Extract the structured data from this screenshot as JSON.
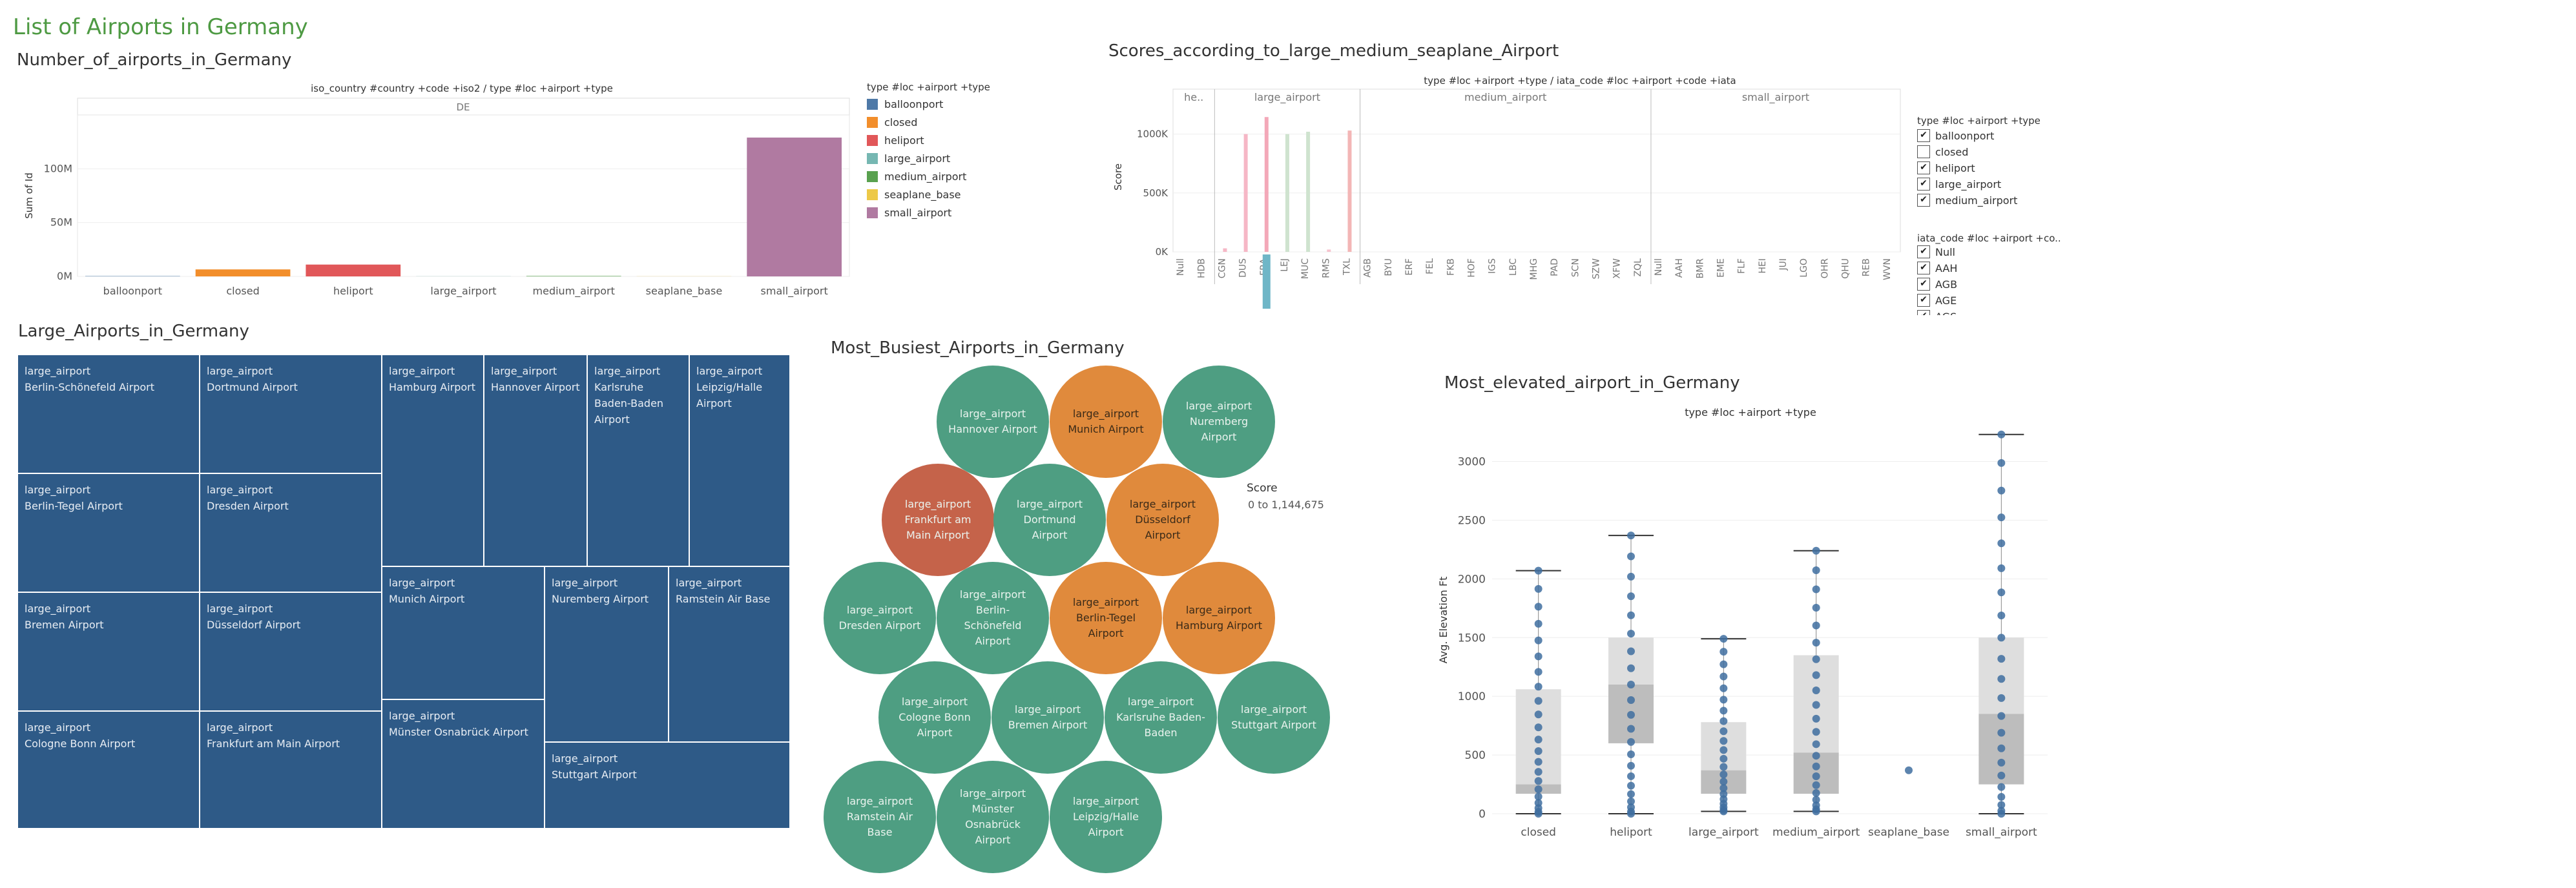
{
  "dashboard": {
    "title": "List of Airports in Germany"
  },
  "colors": {
    "balloonport": "#4e79a7",
    "closed": "#f28e2b",
    "heliport": "#e15759",
    "large_airport": "#76b7b2",
    "medium_airport": "#59a14f",
    "seaplane_base": "#edc948",
    "small_airport": "#b07aa1",
    "treemap": "#2e5a87",
    "bubble_green": "#4e9e82",
    "bubble_orange": "#e08a3c",
    "bubble_red": "#c5634a",
    "box_points": "#3f6fa0"
  },
  "number_chart": {
    "sheet_title": "Number_of_airports_in_Germany",
    "header": "iso_country #country +code +iso2  /  type #loc +airport +type",
    "country": "DE",
    "ylabel": "Sum of Id",
    "y_ticks": [
      "100M",
      "50M",
      "0M"
    ],
    "legend": {
      "title": "type #loc +airport +type",
      "items": [
        {
          "label": "balloonport",
          "color": "#4e79a7"
        },
        {
          "label": "closed",
          "color": "#f28e2b"
        },
        {
          "label": "heliport",
          "color": "#e15759"
        },
        {
          "label": "large_airport",
          "color": "#76b7b2"
        },
        {
          "label": "medium_airport",
          "color": "#59a14f"
        },
        {
          "label": "seaplane_base",
          "color": "#edc948"
        },
        {
          "label": "small_airport",
          "color": "#b07aa1"
        }
      ]
    }
  },
  "chart_data": [
    {
      "type": "bar",
      "title": "Number_of_airports_in_Germany",
      "xlabel": "",
      "ylabel": "Sum of Id",
      "categories": [
        "balloonport",
        "closed",
        "heliport",
        "large_airport",
        "medium_airport",
        "seaplane_base",
        "small_airport"
      ],
      "values": [
        0.3,
        6.5,
        11,
        0.1,
        0.4,
        0.1,
        129
      ],
      "unit": "M",
      "ylim": [
        0,
        150
      ],
      "grid": true,
      "legend": "right"
    },
    {
      "type": "bar",
      "title": "Scores_according_to_large_medium_seaplane_Airport",
      "ylabel": "Score",
      "ylim": [
        0,
        1250000
      ],
      "groups": [
        {
          "name": "he..",
          "categories": [
            "Null",
            "HDB"
          ],
          "values": [
            0,
            0
          ]
        },
        {
          "name": "large_airport",
          "categories": [
            "CGN",
            "DUS",
            "FRA",
            "LEJ",
            "MUC",
            "RMS",
            "TXL"
          ],
          "values": [
            30000,
            1000000,
            1144675,
            1000000,
            1020000,
            20000,
            1030000
          ]
        },
        {
          "name": "medium_airport",
          "categories": [
            "AGB",
            "BYU",
            "ERF",
            "FEL",
            "FKB",
            "HOF",
            "IGS",
            "LBC",
            "MHG",
            "PAD",
            "SCN",
            "SZW",
            "XFW",
            "ZQL"
          ],
          "values": [
            0,
            0,
            0,
            0,
            0,
            0,
            0,
            0,
            0,
            0,
            0,
            0,
            0,
            0
          ]
        },
        {
          "name": "small_airport",
          "categories": [
            "Null",
            "AAH",
            "BMR",
            "EME",
            "FLF",
            "HEI",
            "JUI",
            "LGO",
            "OHR",
            "QHU",
            "REB",
            "WVN"
          ],
          "values": [
            0,
            0,
            0,
            0,
            0,
            0,
            0,
            0,
            0,
            0,
            0,
            0
          ]
        }
      ],
      "y_ticks": [
        "1000K",
        "500K",
        "0K"
      ],
      "legend": "right"
    },
    {
      "type": "treemap",
      "title": "Large_Airports_in_Germany",
      "categories": [
        "Berlin-Schönefeld Airport",
        "Dortmund Airport",
        "Hamburg Airport",
        "Hannover Airport",
        "Karlsruhe Baden-Baden Airport",
        "Leipzig/Halle Airport",
        "Berlin-Tegel Airport",
        "Dresden Airport",
        "Munich Airport",
        "Nuremberg Airport",
        "Ramstein Air Base",
        "Bremen Airport",
        "Düsseldorf Airport",
        "Münster Osnabrück Airport",
        "Cologne Bonn Airport",
        "Frankfurt am Main Airport",
        "Stuttgart Airport"
      ]
    },
    {
      "type": "scatter",
      "title": "Most_Busiest_Airports_in_Germany",
      "legend": "Score 0 to 1,144,675",
      "categories": [
        "Hannover Airport",
        "Munich Airport",
        "Nuremberg Airport",
        "Frankfurt am Main Airport",
        "Dortmund Airport",
        "Düsseldorf Airport",
        "Dresden Airport",
        "Berlin-Schönefeld Airport",
        "Berlin-Tegel Airport",
        "Hamburg Airport",
        "Cologne Bonn Airport",
        "Bremen Airport",
        "Karlsruhe Baden-Baden",
        "Stuttgart Airport",
        "Ramstein Air Base",
        "Münster Osnabrück Airport",
        "Leipzig/Halle Airport"
      ]
    },
    {
      "type": "scatter",
      "subtype": "box",
      "title": "Most_elevated_airport_in_Germany",
      "header": "type #loc +airport +type",
      "ylabel": "Avg. Elevation Ft",
      "categories": [
        "closed",
        "heliport",
        "large_airport",
        "medium_airport",
        "seaplane_base",
        "small_airport"
      ],
      "boxes": [
        {
          "name": "closed",
          "min": 0,
          "q1": 170,
          "median": 250,
          "q3": 1060,
          "max": 2070
        },
        {
          "name": "heliport",
          "min": 0,
          "q1": 600,
          "median": 1100,
          "q3": 1500,
          "max": 2370
        },
        {
          "name": "large_airport",
          "min": 20,
          "q1": 170,
          "median": 370,
          "q3": 780,
          "max": 1490
        },
        {
          "name": "medium_airport",
          "min": 20,
          "q1": 170,
          "median": 520,
          "q3": 1350,
          "max": 2240
        },
        {
          "name": "seaplane_base",
          "min": 370,
          "q1": 370,
          "median": 370,
          "q3": 370,
          "max": 370
        },
        {
          "name": "small_airport",
          "min": 0,
          "q1": 250,
          "median": 850,
          "q3": 1500,
          "max": 3230
        }
      ],
      "ylim": [
        0,
        3300
      ],
      "y_ticks": [
        0,
        500,
        1000,
        1500,
        2000,
        2500,
        3000
      ],
      "grid": true
    }
  ],
  "scores_chart": {
    "sheet_title": "Scores_according_to_large_medium_seaplane_Airport",
    "header": "type #loc +airport +type  /  iata_code #loc +airport +code +iata",
    "ylabel": "Score",
    "group_labels": [
      "he..",
      "large_airport",
      "medium_airport",
      "small_airport"
    ],
    "filter1": {
      "title": "type #loc +airport +type",
      "items": [
        {
          "label": "balloonport",
          "checked": "✔"
        },
        {
          "label": "closed",
          "checked": ""
        },
        {
          "label": "heliport",
          "checked": "✔"
        },
        {
          "label": "large_airport",
          "checked": "✔"
        },
        {
          "label": "medium_airport",
          "checked": "✔"
        }
      ]
    },
    "filter2": {
      "title": "iata_code #loc +airport +co..",
      "items": [
        {
          "label": "Null",
          "checked": "✔"
        },
        {
          "label": "AAH",
          "checked": "✔"
        },
        {
          "label": "AGB",
          "checked": "✔"
        },
        {
          "label": "AGE",
          "checked": "✔"
        },
        {
          "label": "AGS",
          "checked": "✔"
        }
      ]
    }
  },
  "treemap": {
    "sheet_title": "Large_Airports_in_Germany",
    "type_label": "large_airport",
    "cells": [
      {
        "name": "Berlin-Schönefeld Airport"
      },
      {
        "name": "Dortmund Airport"
      },
      {
        "name": "Hamburg Airport"
      },
      {
        "name": "Hannover Airport"
      },
      {
        "name": "Karlsruhe Baden-Baden Airport"
      },
      {
        "name": "Leipzig/Halle Airport"
      },
      {
        "name": "Berlin-Tegel Airport"
      },
      {
        "name": "Dresden Airport"
      },
      {
        "name": "Munich Airport"
      },
      {
        "name": "Nuremberg Airport"
      },
      {
        "name": "Ramstein Air Base"
      },
      {
        "name": "Bremen Airport"
      },
      {
        "name": "Düsseldorf Airport"
      },
      {
        "name": "Münster Osnabrück Airport"
      },
      {
        "name": "Cologne Bonn Airport"
      },
      {
        "name": "Frankfurt am Main Airport"
      },
      {
        "name": "Stuttgart Airport"
      }
    ]
  },
  "bubbles": {
    "sheet_title": "Most_Busiest_Airports_in_Germany",
    "type_label": "large_airport",
    "legend_title": "Score",
    "legend_range": "0 to 1,144,675",
    "items": [
      {
        "name": "Hannover Airport",
        "color": "#4e9e82"
      },
      {
        "name": "Munich Airport",
        "color": "#e08a3c"
      },
      {
        "name": "Nuremberg Airport",
        "color": "#4e9e82"
      },
      {
        "name": "Frankfurt am Main Airport",
        "color": "#c5634a"
      },
      {
        "name": "Dortmund Airport",
        "color": "#4e9e82"
      },
      {
        "name": "Düsseldorf Airport",
        "color": "#e08a3c"
      },
      {
        "name": "Dresden Airport",
        "color": "#4e9e82"
      },
      {
        "name": "Berlin-Schönefeld Airport",
        "color": "#4e9e82"
      },
      {
        "name": "Berlin-Tegel Airport",
        "color": "#e08a3c"
      },
      {
        "name": "Hamburg Airport",
        "color": "#e08a3c"
      },
      {
        "name": "Cologne Bonn Airport",
        "color": "#4e9e82"
      },
      {
        "name": "Bremen Airport",
        "color": "#4e9e82"
      },
      {
        "name": "Karlsruhe Baden-Baden",
        "color": "#4e9e82"
      },
      {
        "name": "Stuttgart Airport",
        "color": "#4e9e82"
      },
      {
        "name": "Ramstein Air Base",
        "color": "#4e9e82"
      },
      {
        "name": "Münster Osnabrück Airport",
        "color": "#4e9e82"
      },
      {
        "name": "Leipzig/Halle Airport",
        "color": "#4e9e82"
      }
    ]
  },
  "elevation": {
    "sheet_title": "Most_elevated_airport_in_Germany",
    "header": "type #loc +airport +type",
    "ylabel": "Avg. Elevation Ft"
  }
}
